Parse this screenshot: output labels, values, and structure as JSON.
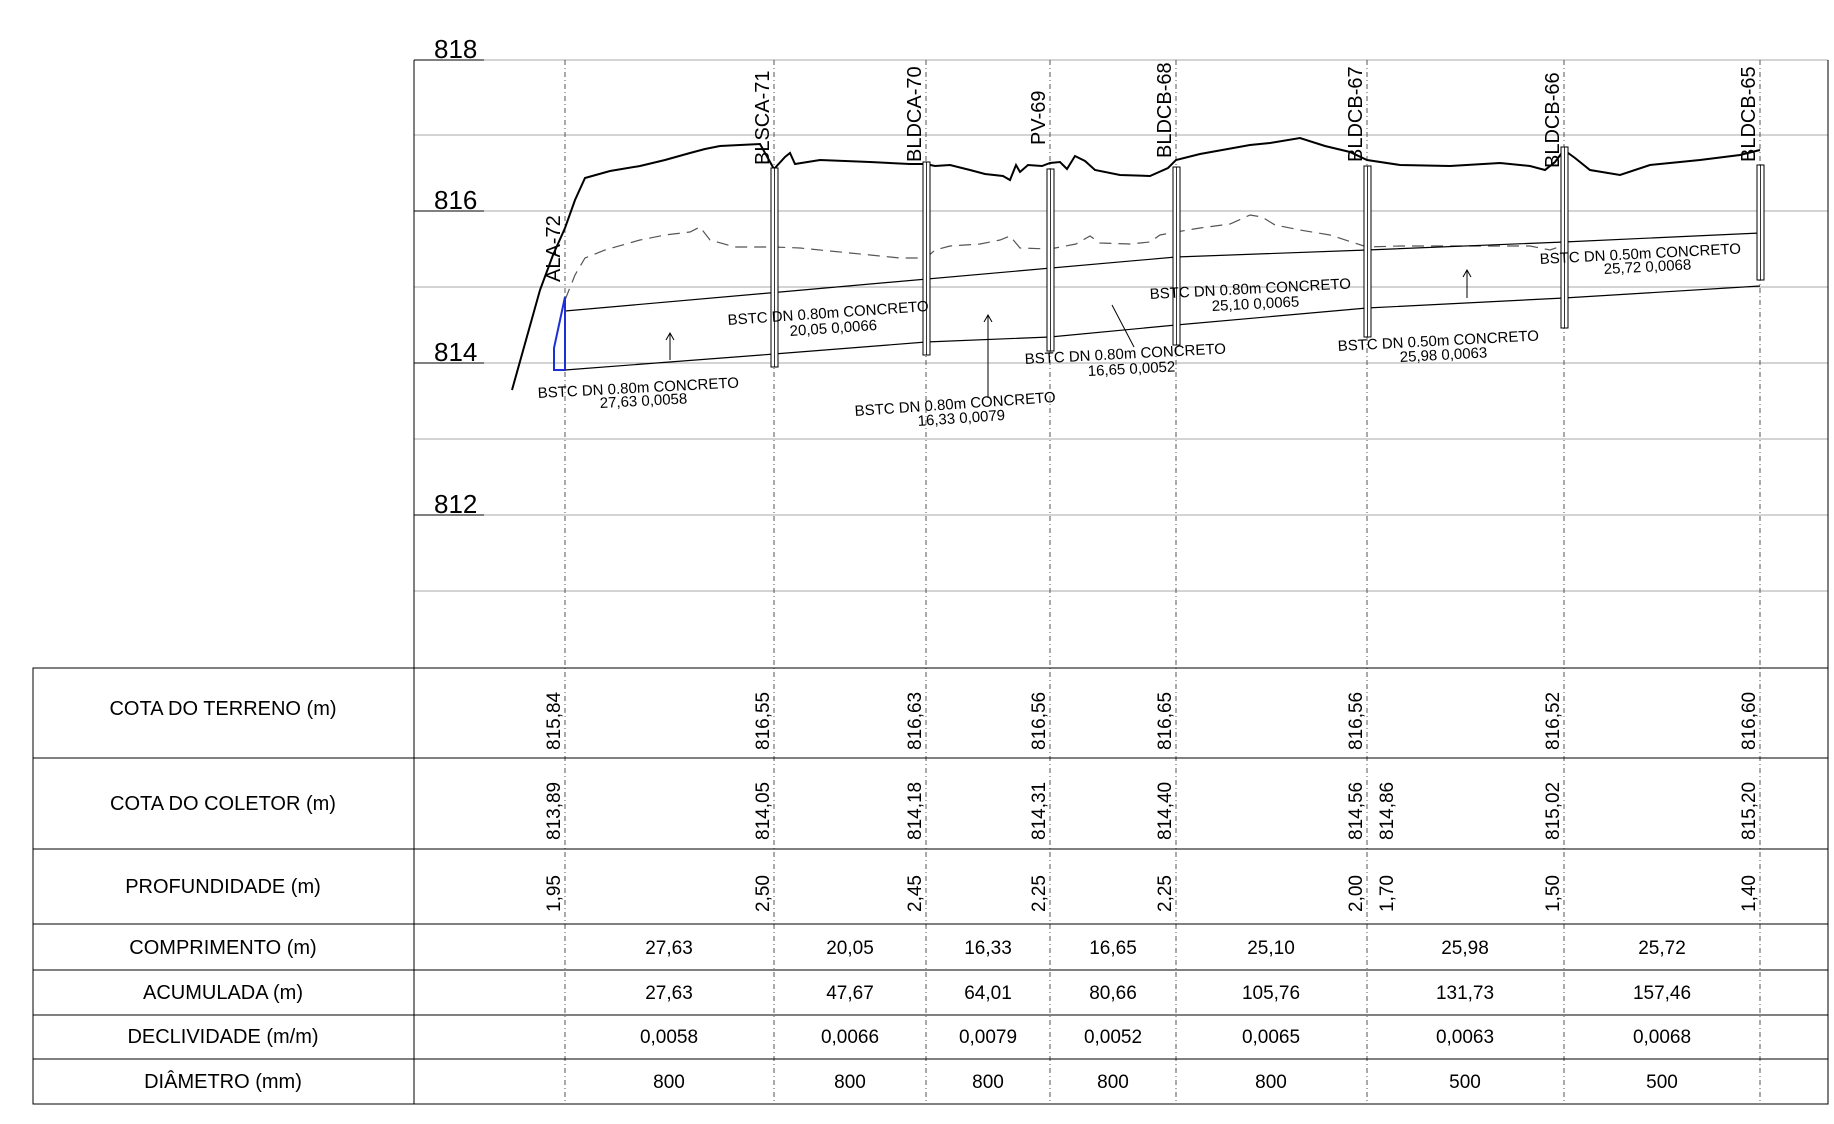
{
  "profile": {
    "elevation_labels": [
      "818",
      "816",
      "814",
      "812"
    ],
    "stations": [
      "ALA-72",
      "BLSCA-71",
      "BLDCA-70",
      "PV-69",
      "BLDCB-68",
      "BLDCB-67",
      "BLDCB-66",
      "BLDCB-65"
    ],
    "segments": [
      {
        "label": "BSTC  DN  0.80m  CONCRETO",
        "values": "27,63  0,0058"
      },
      {
        "label": "BSTC  DN  0.80m  CONCRETO",
        "values": "20,05  0,0066"
      },
      {
        "label": "BSTC  DN  0.80m  CONCRETO",
        "values": "16,33  0,0079"
      },
      {
        "label": "BSTC  DN  0.80m  CONCRETO",
        "values": "16,65  0,0052"
      },
      {
        "label": "BSTC  DN  0.80m  CONCRETO",
        "values": "25,10  0,0065"
      },
      {
        "label": "BSTC  DN  0.50m  CONCRETO",
        "values": "25,98  0,0063"
      },
      {
        "label": "BSTC  DN  0.50m  CONCRETO",
        "values": "25,72  0,0068"
      }
    ]
  },
  "table": {
    "labels": {
      "terreno": "COTA DO TERRENO (m)",
      "coletor": "COTA DO COLETOR (m)",
      "profundidade": "PROFUNDIDADE (m)",
      "comprimento": "COMPRIMENTO (m)",
      "acumulada": "ACUMULADA (m)",
      "declividade": "DECLIVIDADE (m/m)",
      "diametro": "DIÂMETRO (mm)"
    },
    "terreno": [
      "815,84",
      "816,55",
      "816,63",
      "816,56",
      "816,65",
      "816,56",
      "816,52",
      "816,60"
    ],
    "coletor": [
      "813,89",
      "814,05",
      "814,18",
      "814,31",
      "814,40",
      "814,56",
      "814,86",
      "815,02",
      "815,20"
    ],
    "profundidade": [
      "1,95",
      "2,50",
      "2,45",
      "2,25",
      "2,25",
      "2,00",
      "1,70",
      "1,50",
      "1,40"
    ],
    "comprimento": [
      "27,63",
      "20,05",
      "16,33",
      "16,65",
      "25,10",
      "25,98",
      "25,72"
    ],
    "acumulada": [
      "27,63",
      "47,67",
      "64,01",
      "80,66",
      "105,76",
      "131,73",
      "157,46"
    ],
    "declividade": [
      "0,0058",
      "0,0066",
      "0,0079",
      "0,0052",
      "0,0065",
      "0,0063",
      "0,0068"
    ],
    "diametro": [
      "800",
      "800",
      "800",
      "800",
      "800",
      "500",
      "500"
    ]
  }
}
